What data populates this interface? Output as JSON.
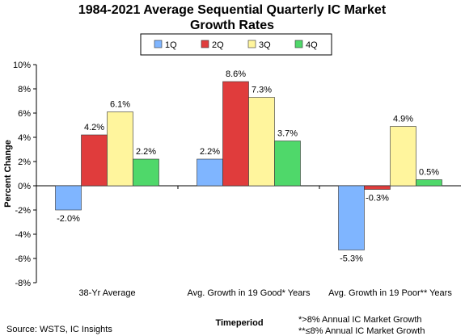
{
  "chart_data": {
    "type": "bar",
    "title": "1984-2021 Average Sequential Quarterly IC Market",
    "subtitle": "Growth Rates",
    "ylabel": "Percent Change",
    "xlabel": "Timeperiod",
    "categories": [
      "38-Yr Average",
      "Avg. Growth in 19 Good* Years",
      "Avg. Growth in 19 Poor** Years"
    ],
    "ylim": [
      -8,
      10
    ],
    "yticks": [
      "10%",
      "8%",
      "6%",
      "4%",
      "2%",
      "0%",
      "-2%",
      "-4%",
      "-6%",
      "-8%"
    ],
    "series": [
      {
        "name": "1Q",
        "color": "#7fb5ff",
        "values": [
          -2.0,
          2.2,
          -5.3
        ],
        "labels": [
          "-2.0%",
          "2.2%",
          "-5.3%"
        ]
      },
      {
        "name": "2Q",
        "color": "#e03c3c",
        "values": [
          4.2,
          8.6,
          -0.3
        ],
        "labels": [
          "4.2%",
          "8.6%",
          "-0.3%"
        ]
      },
      {
        "name": "3Q",
        "color": "#fff59d",
        "values": [
          6.1,
          7.3,
          4.9
        ],
        "labels": [
          "6.1%",
          "7.3%",
          "4.9%"
        ]
      },
      {
        "name": "4Q",
        "color": "#4fd86a",
        "values": [
          2.2,
          3.7,
          0.5
        ],
        "labels": [
          "2.2%",
          "3.7%",
          "0.5%"
        ]
      }
    ],
    "grid": false,
    "legend": "top"
  },
  "footer": {
    "source": "Source: WSTS, IC Insights",
    "note1": "*>8% Annual IC Market Growth",
    "note2": "**≤8% Annual IC Market Growth"
  }
}
